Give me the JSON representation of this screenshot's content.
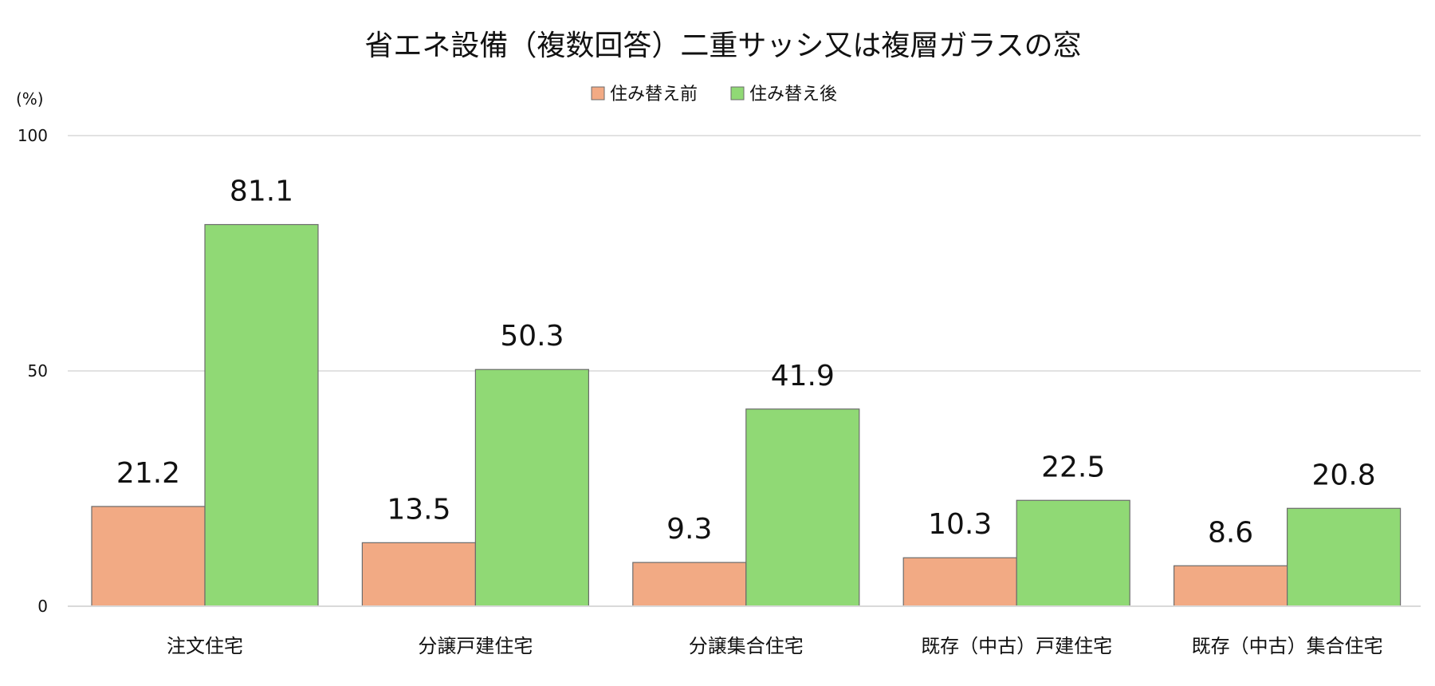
{
  "chart_data": {
    "type": "bar",
    "title": "省エネ設備（複数回答）二重サッシ又は複層ガラスの窓",
    "ylabel": "(%)",
    "ylim": [
      0,
      100
    ],
    "yticks": [
      0,
      50,
      100
    ],
    "grid": true,
    "legend_position": "top-center",
    "categories": [
      "注文住宅",
      "分譲戸建住宅",
      "分譲集合住宅",
      "既存（中古）戸建住宅",
      "既存（中古）集合住宅"
    ],
    "series": [
      {
        "name": "住み替え前",
        "color": "#f2aa84",
        "values": [
          21.2,
          13.5,
          9.3,
          10.3,
          8.6
        ]
      },
      {
        "name": "住み替え後",
        "color": "#90d975",
        "values": [
          81.1,
          50.3,
          41.9,
          22.5,
          20.8
        ]
      }
    ]
  }
}
